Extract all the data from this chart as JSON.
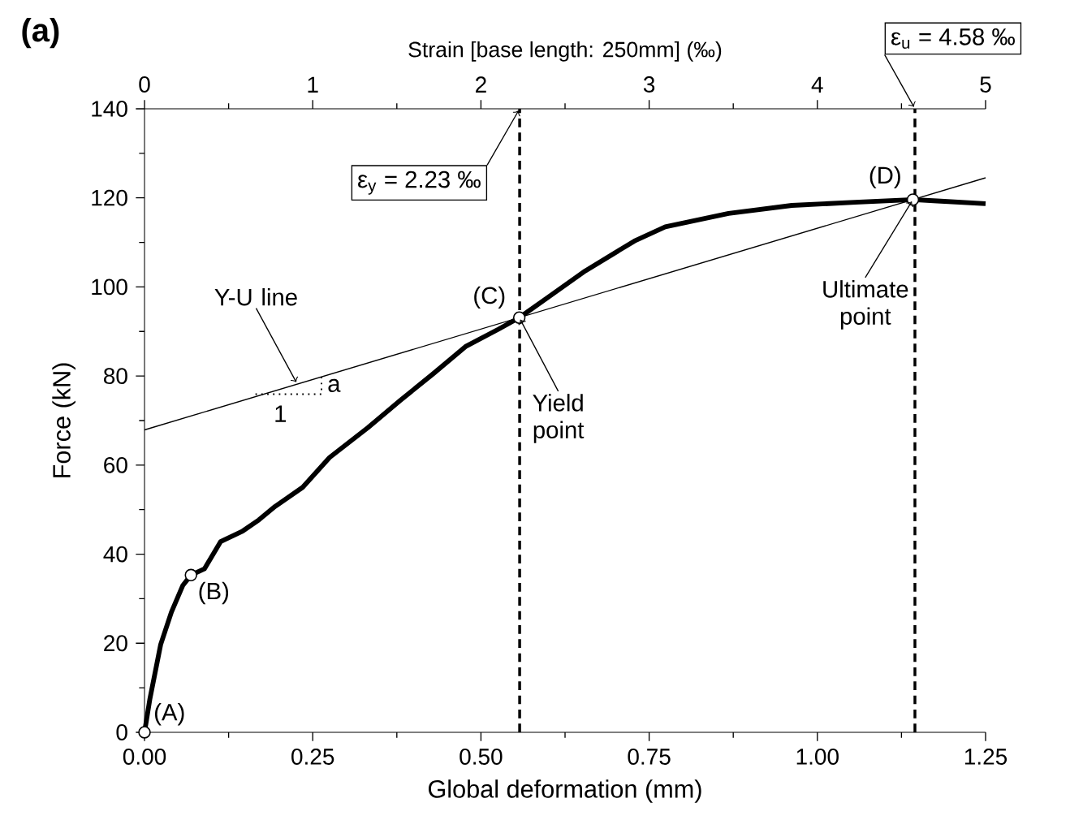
{
  "chart_data": {
    "type": "line",
    "title": "(a)",
    "xlabel": "Global deformation (mm)",
    "ylabel": "Force (kN)",
    "x2label": "Strain [base length: 250mm] (‰)",
    "xlim": [
      0,
      1.25
    ],
    "xticks": [
      {
        "value": 0,
        "label": "0.00"
      },
      {
        "value": 0.25,
        "label": "0.25"
      },
      {
        "value": 0.5,
        "label": "0.50"
      },
      {
        "value": 0.75,
        "label": "0.75"
      },
      {
        "value": 1.0,
        "label": "1.00"
      },
      {
        "value": 1.25,
        "label": "1.25"
      }
    ],
    "ylim": [
      0,
      140
    ],
    "yticks": [
      0,
      20,
      40,
      60,
      80,
      100,
      120,
      140
    ],
    "x2lim": [
      0,
      5
    ],
    "x2ticks": [
      0,
      1,
      2,
      3,
      4,
      5
    ],
    "series": [
      {
        "color": "#000000",
        "x": [
          0,
          0.008,
          0.024,
          0.04,
          0.057,
          0.069,
          0.089,
          0.113,
          0.146,
          0.17,
          0.194,
          0.235,
          0.275,
          0.332,
          0.38,
          0.429,
          0.477,
          0.526,
          0.557,
          0.599,
          0.655,
          0.728,
          0.774,
          0.868,
          0.962,
          1.056,
          1.142,
          1.178,
          1.25
        ],
        "values": [
          0,
          7.5,
          19.7,
          27,
          33,
          35.3,
          36.7,
          42.8,
          45.2,
          47.7,
          50.7,
          55,
          61.7,
          68.4,
          74.5,
          80.5,
          86.6,
          90.5,
          93.1,
          97.6,
          103.6,
          110.3,
          113.5,
          116.5,
          118.3,
          119,
          119.6,
          119.3,
          118.7
        ]
      },
      {
        "color": "#000000",
        "x": [
          0,
          1.25
        ],
        "values": [
          67.9,
          124.5
        ]
      },
      {
        "type": "scatter",
        "marker": "circle",
        "color": "#000000",
        "x": [
          0,
          0.069,
          0.557,
          1.142
        ],
        "values": [
          0,
          35.3,
          93.1,
          119.6
        ]
      }
    ],
    "ref_lines": [
      {
        "axis": "x",
        "value": 0.5575,
        "line_style": "dashed"
      },
      {
        "axis": "x",
        "value": 1.145,
        "line_style": "dashed"
      }
    ],
    "annotations": [
      {
        "text": "(A)",
        "x": 0,
        "y": 0
      },
      {
        "text": "(B)",
        "x": 0.069,
        "y": 35.3
      },
      {
        "text": "(C)",
        "x": 0.557,
        "y": 93.1
      },
      {
        "text": "(D)",
        "x": 1.142,
        "y": 119.6
      },
      {
        "text": "Y-U line",
        "x": 0.227,
        "y": 78.2
      },
      {
        "text": "Yield point",
        "x": 0.557,
        "y": 93.1
      },
      {
        "text": "Ultimate point",
        "x": 1.142,
        "y": 119.6
      },
      {
        "text": "ε$_{y}$ = 2.23 ‰",
        "x": 0.5575,
        "y": 140
      },
      {
        "text": "ε$_{u}$ = 4.58 ‰",
        "x": 1.145,
        "y": 140
      },
      {
        "text": "a",
        "x": 0.263,
        "y": 79.8
      },
      "1"
    ]
  }
}
